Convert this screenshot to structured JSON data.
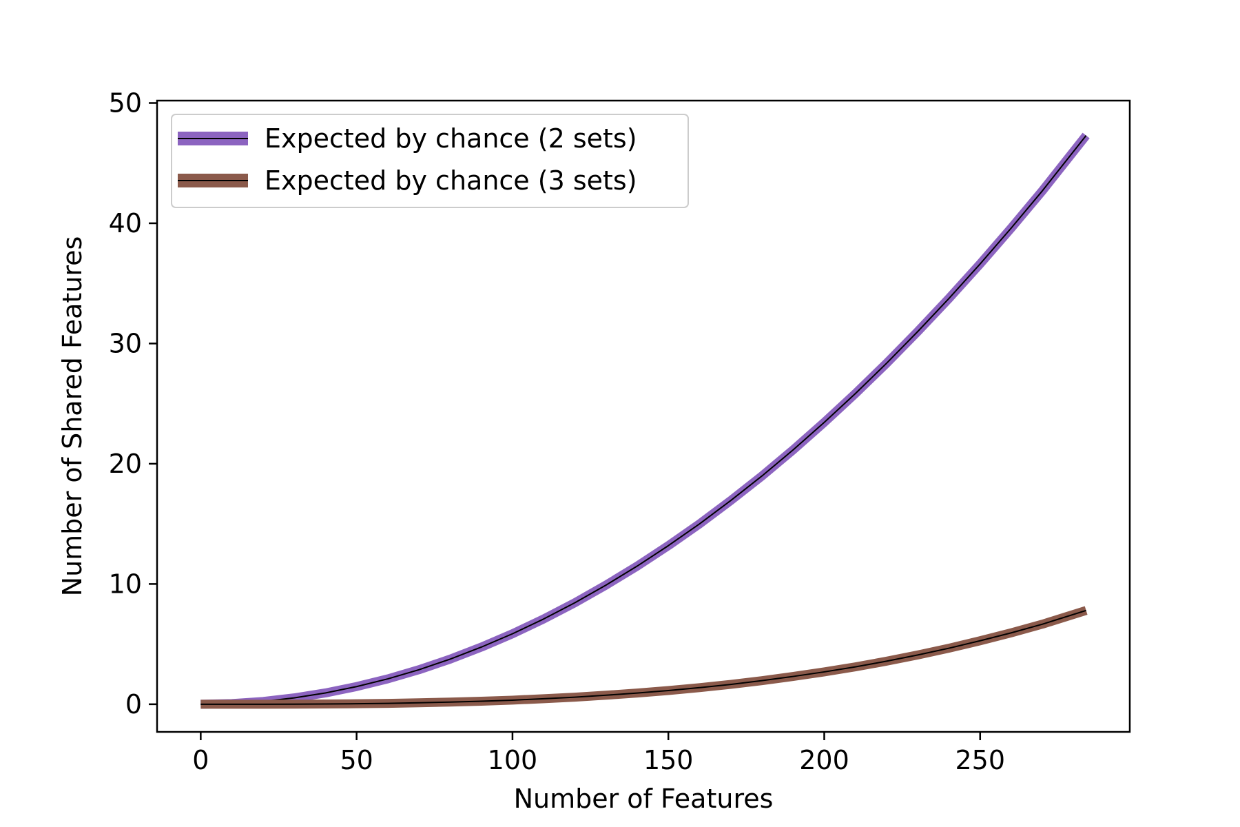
{
  "chart_data": {
    "type": "line",
    "title": "",
    "xlabel": "Number of Features",
    "ylabel": "Number of Shared Features",
    "xlim": [
      -14,
      298
    ],
    "ylim": [
      -2.3,
      50.2
    ],
    "xticks": [
      0,
      50,
      100,
      150,
      200,
      250
    ],
    "yticks": [
      0,
      10,
      20,
      30,
      40,
      50
    ],
    "grid": false,
    "legend": {
      "position": "top-left"
    },
    "x": [
      0,
      10,
      20,
      30,
      40,
      50,
      60,
      70,
      80,
      90,
      100,
      110,
      120,
      130,
      140,
      150,
      160,
      170,
      180,
      190,
      200,
      210,
      220,
      230,
      240,
      250,
      260,
      270,
      284
    ],
    "series": [
      {
        "name": "Expected by chance (2 sets)",
        "color": "#8c64c0",
        "values": [
          0,
          0.06,
          0.23,
          0.53,
          0.94,
          1.47,
          2.11,
          2.87,
          3.75,
          4.75,
          5.86,
          7.09,
          8.44,
          9.91,
          11.49,
          13.19,
          15.0,
          16.94,
          18.98,
          21.15,
          23.44,
          25.84,
          28.36,
          31.0,
          33.75,
          36.62,
          39.61,
          42.71,
          47.3
        ]
      },
      {
        "name": "Expected by chance (3 sets)",
        "color": "#8b5a4b",
        "values": [
          0,
          0.0003,
          0.003,
          0.009,
          0.02,
          0.04,
          0.07,
          0.12,
          0.18,
          0.25,
          0.34,
          0.46,
          0.59,
          0.75,
          0.93,
          1.14,
          1.38,
          1.65,
          1.96,
          2.31,
          2.69,
          3.11,
          3.58,
          4.1,
          4.66,
          5.28,
          5.94,
          6.66,
          7.8
        ]
      }
    ]
  }
}
